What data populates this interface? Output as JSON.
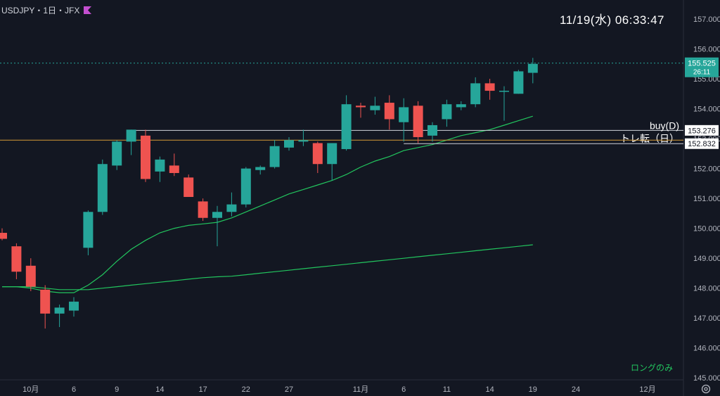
{
  "header": {
    "symbol_text": "USDJPY・1日・JFX",
    "flag_icon": "flag-icon",
    "flag_color": "#c44fd0"
  },
  "clock": {
    "datetime": "11/19(水)   06:33:47"
  },
  "annotations": {
    "long_only": "ロングのみ"
  },
  "colors": {
    "background": "#131722",
    "up": "#26a69a",
    "down": "#ef5350",
    "ma_fast": "#22c55e",
    "ma_slow": "#22c55e",
    "hline_white": "#d1d4dc",
    "hline_orange": "#d49a36",
    "price_tag": "#26a69a"
  },
  "chart_data": {
    "type": "candlestick",
    "symbol": "USDJPY",
    "timeframe": "1日",
    "ylim": [
      144.7,
      157.4
    ],
    "y_ticks": [
      "157.000",
      "156.000",
      "155.000",
      "154.000",
      "153.000",
      "152.000",
      "151.000",
      "150.000",
      "149.000",
      "148.000",
      "147.000",
      "146.000",
      "145.000"
    ],
    "x_ticks": [
      {
        "label": "10月",
        "index": 2
      },
      {
        "label": "6",
        "index": 5
      },
      {
        "label": "9",
        "index": 8
      },
      {
        "label": "14",
        "index": 11
      },
      {
        "label": "17",
        "index": 14
      },
      {
        "label": "22",
        "index": 17
      },
      {
        "label": "27",
        "index": 20
      },
      {
        "label": "11月",
        "index": 25
      },
      {
        "label": "6",
        "index": 28
      },
      {
        "label": "11",
        "index": 31
      },
      {
        "label": "14",
        "index": 34
      },
      {
        "label": "19",
        "index": 37
      },
      {
        "label": "24",
        "index": 40
      },
      {
        "label": "12月",
        "index": 45
      }
    ],
    "candles": [
      {
        "o": 149.85,
        "h": 150.0,
        "l": 149.6,
        "c": 149.65
      },
      {
        "o": 149.4,
        "h": 149.5,
        "l": 148.3,
        "c": 148.55
      },
      {
        "o": 148.75,
        "h": 149.0,
        "l": 147.9,
        "c": 148.05
      },
      {
        "o": 147.95,
        "h": 148.1,
        "l": 146.65,
        "c": 147.15
      },
      {
        "o": 147.15,
        "h": 147.45,
        "l": 146.7,
        "c": 147.35
      },
      {
        "o": 147.25,
        "h": 147.7,
        "l": 147.05,
        "c": 147.55
      },
      {
        "o": 149.35,
        "h": 150.6,
        "l": 149.1,
        "c": 150.55
      },
      {
        "o": 150.55,
        "h": 152.3,
        "l": 150.45,
        "c": 152.15
      },
      {
        "o": 152.1,
        "h": 152.95,
        "l": 151.95,
        "c": 152.9
      },
      {
        "o": 152.9,
        "h": 153.3,
        "l": 152.45,
        "c": 153.3
      },
      {
        "o": 153.1,
        "h": 153.3,
        "l": 151.55,
        "c": 151.65
      },
      {
        "o": 151.9,
        "h": 152.4,
        "l": 151.55,
        "c": 152.3
      },
      {
        "o": 152.1,
        "h": 152.5,
        "l": 151.75,
        "c": 151.85
      },
      {
        "o": 151.7,
        "h": 151.8,
        "l": 151.05,
        "c": 151.05
      },
      {
        "o": 150.9,
        "h": 151.0,
        "l": 150.25,
        "c": 150.35
      },
      {
        "o": 150.35,
        "h": 150.75,
        "l": 149.4,
        "c": 150.55
      },
      {
        "o": 150.55,
        "h": 151.2,
        "l": 150.4,
        "c": 150.8
      },
      {
        "o": 150.8,
        "h": 152.05,
        "l": 150.7,
        "c": 152.0
      },
      {
        "o": 151.95,
        "h": 152.1,
        "l": 151.8,
        "c": 152.05
      },
      {
        "o": 152.05,
        "h": 152.95,
        "l": 152.0,
        "c": 152.75
      },
      {
        "o": 152.7,
        "h": 153.05,
        "l": 152.6,
        "c": 152.95
      },
      {
        "o": 152.9,
        "h": 153.3,
        "l": 152.75,
        "c": 152.95
      },
      {
        "o": 152.85,
        "h": 152.9,
        "l": 151.85,
        "c": 152.15
      },
      {
        "o": 152.15,
        "h": 152.85,
        "l": 151.6,
        "c": 152.85
      },
      {
        "o": 152.65,
        "h": 154.45,
        "l": 152.6,
        "c": 154.15
      },
      {
        "o": 154.1,
        "h": 154.2,
        "l": 153.7,
        "c": 154.05
      },
      {
        "o": 153.95,
        "h": 154.4,
        "l": 153.8,
        "c": 154.1
      },
      {
        "o": 154.2,
        "h": 154.45,
        "l": 153.3,
        "c": 153.65
      },
      {
        "o": 153.55,
        "h": 154.35,
        "l": 152.9,
        "c": 154.05
      },
      {
        "o": 154.1,
        "h": 154.25,
        "l": 152.85,
        "c": 153.05
      },
      {
        "o": 153.1,
        "h": 153.55,
        "l": 152.9,
        "c": 153.45
      },
      {
        "o": 153.65,
        "h": 154.3,
        "l": 153.4,
        "c": 154.15
      },
      {
        "o": 154.05,
        "h": 154.25,
        "l": 153.95,
        "c": 154.15
      },
      {
        "o": 154.15,
        "h": 155.05,
        "l": 154.05,
        "c": 154.85
      },
      {
        "o": 154.85,
        "h": 155.0,
        "l": 154.3,
        "c": 154.6
      },
      {
        "o": 154.6,
        "h": 154.75,
        "l": 153.6,
        "c": 154.6
      },
      {
        "o": 154.5,
        "h": 155.3,
        "l": 154.5,
        "c": 155.25
      },
      {
        "o": 155.2,
        "h": 155.7,
        "l": 154.85,
        "c": 155.5
      }
    ],
    "ma_fast": [
      148.05,
      148.05,
      148.0,
      147.9,
      147.85,
      147.85,
      148.1,
      148.45,
      148.9,
      149.3,
      149.6,
      149.85,
      150.0,
      150.1,
      150.15,
      150.2,
      150.35,
      150.55,
      150.75,
      150.95,
      151.15,
      151.3,
      151.45,
      151.6,
      151.8,
      152.05,
      152.25,
      152.4,
      152.6,
      152.7,
      152.8,
      152.95,
      153.1,
      153.2,
      153.3,
      153.45,
      153.6,
      153.75
    ],
    "ma_slow": [
      148.05,
      148.05,
      148.05,
      148.0,
      147.95,
      147.95,
      147.95,
      148.0,
      148.05,
      148.1,
      148.15,
      148.2,
      148.25,
      148.3,
      148.35,
      148.38,
      148.4,
      148.45,
      148.5,
      148.55,
      148.6,
      148.65,
      148.7,
      148.75,
      148.8,
      148.85,
      148.9,
      148.95,
      149.0,
      149.05,
      149.1,
      149.15,
      149.2,
      149.25,
      149.3,
      149.35,
      149.4,
      149.45
    ],
    "lines": [
      {
        "type": "horizontal",
        "price": 153.276,
        "label": "buy(D)",
        "tag": "153.276",
        "start_index": 9,
        "color": "#d1d4dc"
      },
      {
        "type": "horizontal",
        "price": 152.832,
        "label": "トレ転（日）",
        "tag": "152.832",
        "start_index": 28,
        "color": "#d1d4dc"
      },
      {
        "type": "horizontal",
        "price": 152.95,
        "color": "#d49a36"
      },
      {
        "type": "horizontal",
        "price": 155.525,
        "dashed": true,
        "color": "#26a69a"
      }
    ],
    "current_price": {
      "value": "155.525",
      "countdown": "26:11"
    }
  }
}
